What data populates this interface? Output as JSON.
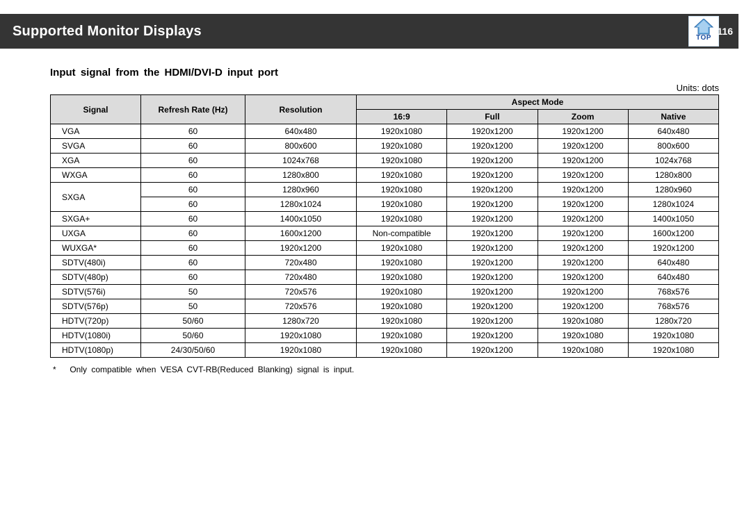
{
  "header": {
    "title": "Supported Monitor Displays",
    "page": "116",
    "top_label": "TOP"
  },
  "section_title": "Input signal from the HDMI/DVI-D input port",
  "units_label": "Units: dots",
  "columns": {
    "signal": "Signal",
    "rate": "Refresh Rate (Hz)",
    "resolution": "Resolution",
    "aspect": "Aspect Mode",
    "a169": "16:9",
    "full": "Full",
    "zoom": "Zoom",
    "native": "Native"
  },
  "rows": [
    {
      "sig": "VGA",
      "rate": "60",
      "res": "640x480",
      "a": "1920x1080",
      "b": "1920x1200",
      "c": "1920x1200",
      "d": "640x480"
    },
    {
      "sig": "SVGA",
      "rate": "60",
      "res": "800x600",
      "a": "1920x1080",
      "b": "1920x1200",
      "c": "1920x1200",
      "d": "800x600"
    },
    {
      "sig": "XGA",
      "rate": "60",
      "res": "1024x768",
      "a": "1920x1080",
      "b": "1920x1200",
      "c": "1920x1200",
      "d": "1024x768"
    },
    {
      "sig": "WXGA",
      "rate": "60",
      "res": "1280x800",
      "a": "1920x1080",
      "b": "1920x1200",
      "c": "1920x1200",
      "d": "1280x800"
    },
    {
      "sig": "SXGA",
      "rate": "60",
      "res": "1280x960",
      "a": "1920x1080",
      "b": "1920x1200",
      "c": "1920x1200",
      "d": "1280x960",
      "span_sig": 2
    },
    {
      "sig": "",
      "rate": "60",
      "res": "1280x1024",
      "a": "1920x1080",
      "b": "1920x1200",
      "c": "1920x1200",
      "d": "1280x1024",
      "skip_sig": true
    },
    {
      "sig": "SXGA+",
      "rate": "60",
      "res": "1400x1050",
      "a": "1920x1080",
      "b": "1920x1200",
      "c": "1920x1200",
      "d": "1400x1050"
    },
    {
      "sig": "UXGA",
      "rate": "60",
      "res": "1600x1200",
      "a": "Non-compatible",
      "b": "1920x1200",
      "c": "1920x1200",
      "d": "1600x1200"
    },
    {
      "sig": "WUXGA*",
      "rate": "60",
      "res": "1920x1200",
      "a": "1920x1080",
      "b": "1920x1200",
      "c": "1920x1200",
      "d": "1920x1200"
    },
    {
      "sig": "SDTV(480i)",
      "rate": "60",
      "res": "720x480",
      "a": "1920x1080",
      "b": "1920x1200",
      "c": "1920x1200",
      "d": "640x480"
    },
    {
      "sig": "SDTV(480p)",
      "rate": "60",
      "res": "720x480",
      "a": "1920x1080",
      "b": "1920x1200",
      "c": "1920x1200",
      "d": "640x480"
    },
    {
      "sig": "SDTV(576i)",
      "rate": "50",
      "res": "720x576",
      "a": "1920x1080",
      "b": "1920x1200",
      "c": "1920x1200",
      "d": "768x576"
    },
    {
      "sig": "SDTV(576p)",
      "rate": "50",
      "res": "720x576",
      "a": "1920x1080",
      "b": "1920x1200",
      "c": "1920x1200",
      "d": "768x576"
    },
    {
      "sig": "HDTV(720p)",
      "rate": "50/60",
      "res": "1280x720",
      "a": "1920x1080",
      "b": "1920x1200",
      "c": "1920x1080",
      "d": "1280x720"
    },
    {
      "sig": "HDTV(1080i)",
      "rate": "50/60",
      "res": "1920x1080",
      "a": "1920x1080",
      "b": "1920x1200",
      "c": "1920x1080",
      "d": "1920x1080"
    },
    {
      "sig": "HDTV(1080p)",
      "rate": "24/30/50/60",
      "res": "1920x1080",
      "a": "1920x1080",
      "b": "1920x1200",
      "c": "1920x1080",
      "d": "1920x1080"
    }
  ],
  "footnote": {
    "mark": "*",
    "text": "Only compatible when VESA CVT-RB(Reduced Blanking) signal is input."
  },
  "colors": {
    "header_bg": "#343434",
    "th_bg": "#dcdcdc",
    "border": "#000000",
    "page_bg": "#ffffff",
    "icon_blue": "#4a90d9",
    "icon_text": "#1c4fa1"
  }
}
